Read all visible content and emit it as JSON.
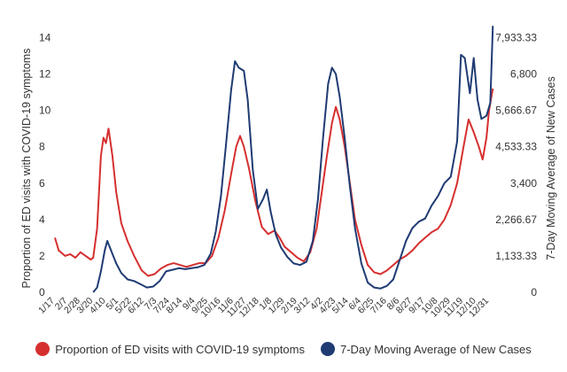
{
  "chart_data": {
    "type": "line",
    "title": "",
    "y_left_label": "Proportion of ED visits with COVID-19 symptoms",
    "y_right_label": "7-Day Moving Average of New Cases",
    "y_left_ticks": [
      "0",
      "2",
      "4",
      "6",
      "8",
      "10",
      "12",
      "14"
    ],
    "y_left_range": [
      0,
      15
    ],
    "y_right_ticks": [
      "0",
      "1,133.33",
      "2,266.67",
      "3,400",
      "4,533.33",
      "5,666.67",
      "6,800",
      "7,933.33"
    ],
    "y_right_range": [
      0,
      8500
    ],
    "x_ticks": [
      "1/17",
      "2/7",
      "2/28",
      "3/20",
      "4/10",
      "5/1",
      "5/22",
      "6/12",
      "7/3",
      "7/24",
      "8/14",
      "9/4",
      "9/25",
      "10/16",
      "11/6",
      "11/27",
      "12/18",
      "1/8",
      "1/29",
      "2/19",
      "3/12",
      "4/2",
      "4/23",
      "5/14",
      "6/4",
      "6/25",
      "7/16",
      "8/6",
      "8/27",
      "9/17",
      "10/8",
      "10/29",
      "11/19",
      "12/10",
      "12/31"
    ],
    "grid": false,
    "legend_position": "bottom",
    "series": [
      {
        "name": "Proportion of ED visits with COVID-19 symptoms",
        "color": "#d62f2f",
        "axis": "left",
        "points": [
          [
            0,
            3.0
          ],
          [
            0.3,
            2.3
          ],
          [
            0.8,
            2.0
          ],
          [
            1.2,
            2.1
          ],
          [
            1.6,
            1.9
          ],
          [
            2,
            2.2
          ],
          [
            2.4,
            2.0
          ],
          [
            2.8,
            1.8
          ],
          [
            3.0,
            1.9
          ],
          [
            3.3,
            3.5
          ],
          [
            3.6,
            7.5
          ],
          [
            3.8,
            8.5
          ],
          [
            4.0,
            8.2
          ],
          [
            4.2,
            9.0
          ],
          [
            4.5,
            7.5
          ],
          [
            4.8,
            5.5
          ],
          [
            5.2,
            3.8
          ],
          [
            5.7,
            2.8
          ],
          [
            6.2,
            2.0
          ],
          [
            6.8,
            1.2
          ],
          [
            7.3,
            0.9
          ],
          [
            7.8,
            1.0
          ],
          [
            8.3,
            1.3
          ],
          [
            8.8,
            1.5
          ],
          [
            9.3,
            1.6
          ],
          [
            9.8,
            1.5
          ],
          [
            10.3,
            1.4
          ],
          [
            10.8,
            1.5
          ],
          [
            11.3,
            1.6
          ],
          [
            11.8,
            1.6
          ],
          [
            12.3,
            2.0
          ],
          [
            12.8,
            3.0
          ],
          [
            13.3,
            4.5
          ],
          [
            13.8,
            6.5
          ],
          [
            14.2,
            8.0
          ],
          [
            14.5,
            8.6
          ],
          [
            14.8,
            8.0
          ],
          [
            15.2,
            6.8
          ],
          [
            15.7,
            5.0
          ],
          [
            16.2,
            3.6
          ],
          [
            16.7,
            3.2
          ],
          [
            17.2,
            3.4
          ],
          [
            17.6,
            3.0
          ],
          [
            18.0,
            2.5
          ],
          [
            18.5,
            2.2
          ],
          [
            19.0,
            1.9
          ],
          [
            19.5,
            1.7
          ],
          [
            20.0,
            2.2
          ],
          [
            20.5,
            3.5
          ],
          [
            20.9,
            5.5
          ],
          [
            21.3,
            7.5
          ],
          [
            21.7,
            9.3
          ],
          [
            22.0,
            10.2
          ],
          [
            22.3,
            9.5
          ],
          [
            22.7,
            8.0
          ],
          [
            23.1,
            6.0
          ],
          [
            23.5,
            4.0
          ],
          [
            24.0,
            2.6
          ],
          [
            24.5,
            1.5
          ],
          [
            25.0,
            1.1
          ],
          [
            25.5,
            1.0
          ],
          [
            26.0,
            1.2
          ],
          [
            26.5,
            1.5
          ],
          [
            27.0,
            1.8
          ],
          [
            27.5,
            2.0
          ],
          [
            28.0,
            2.3
          ],
          [
            28.5,
            2.7
          ],
          [
            29.0,
            3.0
          ],
          [
            29.5,
            3.3
          ],
          [
            30.0,
            3.5
          ],
          [
            30.5,
            4.0
          ],
          [
            31.0,
            4.8
          ],
          [
            31.5,
            6.0
          ],
          [
            32.0,
            8.0
          ],
          [
            32.4,
            9.5
          ],
          [
            32.8,
            8.8
          ],
          [
            33.2,
            8.0
          ],
          [
            33.5,
            7.3
          ],
          [
            33.8,
            8.5
          ],
          [
            34.0,
            10.0
          ],
          [
            34.3,
            11.2
          ]
        ]
      },
      {
        "name": "7-Day Moving Average of New Cases",
        "color": "#1f3b73",
        "axis": "right",
        "points": [
          [
            3.0,
            0
          ],
          [
            3.3,
            150
          ],
          [
            3.6,
            650
          ],
          [
            3.9,
            1300
          ],
          [
            4.1,
            1600
          ],
          [
            4.4,
            1300
          ],
          [
            4.8,
            900
          ],
          [
            5.2,
            600
          ],
          [
            5.7,
            400
          ],
          [
            6.2,
            350
          ],
          [
            6.7,
            250
          ],
          [
            7.2,
            150
          ],
          [
            7.7,
            180
          ],
          [
            8.2,
            350
          ],
          [
            8.7,
            650
          ],
          [
            9.2,
            700
          ],
          [
            9.7,
            750
          ],
          [
            10.2,
            720
          ],
          [
            10.7,
            750
          ],
          [
            11.2,
            780
          ],
          [
            11.7,
            850
          ],
          [
            12.2,
            1200
          ],
          [
            12.6,
            1900
          ],
          [
            13.0,
            3000
          ],
          [
            13.4,
            4600
          ],
          [
            13.8,
            6300
          ],
          [
            14.1,
            7200
          ],
          [
            14.4,
            7000
          ],
          [
            14.8,
            6900
          ],
          [
            15.1,
            6000
          ],
          [
            15.5,
            3800
          ],
          [
            15.9,
            2600
          ],
          [
            16.3,
            2900
          ],
          [
            16.6,
            3200
          ],
          [
            16.9,
            2500
          ],
          [
            17.3,
            1800
          ],
          [
            17.7,
            1400
          ],
          [
            18.2,
            1100
          ],
          [
            18.7,
            900
          ],
          [
            19.2,
            850
          ],
          [
            19.7,
            950
          ],
          [
            20.2,
            1600
          ],
          [
            20.6,
            2900
          ],
          [
            21.0,
            4800
          ],
          [
            21.4,
            6500
          ],
          [
            21.7,
            7000
          ],
          [
            22.0,
            6800
          ],
          [
            22.3,
            6100
          ],
          [
            22.7,
            4800
          ],
          [
            23.1,
            3300
          ],
          [
            23.5,
            2000
          ],
          [
            24.0,
            900
          ],
          [
            24.5,
            300
          ],
          [
            25.0,
            150
          ],
          [
            25.5,
            120
          ],
          [
            26.0,
            200
          ],
          [
            26.5,
            400
          ],
          [
            27.0,
            1000
          ],
          [
            27.5,
            1600
          ],
          [
            28.0,
            2000
          ],
          [
            28.5,
            2200
          ],
          [
            29.0,
            2300
          ],
          [
            29.5,
            2700
          ],
          [
            30.0,
            3000
          ],
          [
            30.5,
            3400
          ],
          [
            31.0,
            3600
          ],
          [
            31.5,
            4700
          ],
          [
            31.8,
            7400
          ],
          [
            32.1,
            7300
          ],
          [
            32.5,
            6200
          ],
          [
            32.8,
            7300
          ],
          [
            33.1,
            6000
          ],
          [
            33.4,
            5400
          ],
          [
            33.8,
            5500
          ],
          [
            34.1,
            5900
          ],
          [
            34.3,
            8300
          ]
        ]
      }
    ]
  }
}
